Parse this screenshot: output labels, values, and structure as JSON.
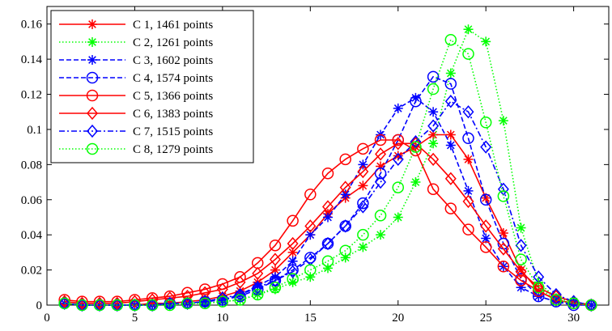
{
  "chart_data": {
    "type": "line",
    "xlim": [
      0,
      32
    ],
    "ylim": [
      0,
      0.17
    ],
    "xticks": [
      "0",
      "5",
      "10",
      "15",
      "20",
      "25",
      "30"
    ],
    "yticks": [
      "0",
      "0.02",
      "0.04",
      "0.06",
      "0.08",
      "0.1",
      "0.12",
      "0.14",
      "0.16"
    ],
    "legend_position": "top-left",
    "grid": false,
    "x": [
      1,
      2,
      3,
      4,
      5,
      6,
      7,
      8,
      9,
      10,
      11,
      12,
      13,
      14,
      15,
      16,
      17,
      18,
      19,
      20,
      21,
      22,
      23,
      24,
      25,
      26,
      27,
      28,
      29,
      30,
      31
    ],
    "series": [
      {
        "name": "C 1, 1461 points",
        "color": "#ff0000",
        "dash": "solid",
        "marker": "star",
        "values": [
          0.001,
          0,
          0,
          0,
          0,
          0.001,
          0.001,
          0.002,
          0.003,
          0.005,
          0.008,
          0.013,
          0.02,
          0.03,
          0.04,
          0.052,
          0.061,
          0.068,
          0.079,
          0.085,
          0.09,
          0.097,
          0.097,
          0.083,
          0.061,
          0.041,
          0.02,
          0.008,
          0.003,
          0.001,
          0
        ]
      },
      {
        "name": "C 2, 1261 points",
        "color": "#00ff00",
        "dash": "dotted",
        "marker": "star",
        "values": [
          0.001,
          0,
          0,
          0,
          0,
          0,
          0,
          0.001,
          0.001,
          0.002,
          0.003,
          0.006,
          0.009,
          0.013,
          0.016,
          0.021,
          0.027,
          0.033,
          0.04,
          0.05,
          0.07,
          0.092,
          0.132,
          0.157,
          0.15,
          0.105,
          0.044,
          0.013,
          0.004,
          0.002,
          0
        ]
      },
      {
        "name": "C 3, 1602 points",
        "color": "#0000ff",
        "dash": "dashed",
        "marker": "star",
        "values": [
          0.001,
          0,
          0,
          0,
          0,
          0,
          0.001,
          0.001,
          0.002,
          0.003,
          0.006,
          0.011,
          0.016,
          0.025,
          0.04,
          0.05,
          0.063,
          0.08,
          0.097,
          0.112,
          0.118,
          0.11,
          0.091,
          0.065,
          0.038,
          0.022,
          0.01,
          0.005,
          0.002,
          0.001,
          0
        ]
      },
      {
        "name": "C 4, 1574 points",
        "color": "#0000ff",
        "dash": "dashed",
        "marker": "circle",
        "values": [
          0.001,
          0,
          0,
          0,
          0,
          0,
          0.001,
          0.001,
          0.002,
          0.003,
          0.005,
          0.009,
          0.014,
          0.02,
          0.027,
          0.035,
          0.045,
          0.058,
          0.075,
          0.094,
          0.116,
          0.13,
          0.126,
          0.095,
          0.06,
          0.035,
          0.015,
          0.005,
          0.002,
          0,
          0
        ]
      },
      {
        "name": "C 5, 1366 points",
        "color": "#ff0000",
        "dash": "solid",
        "marker": "circle",
        "values": [
          0.003,
          0.002,
          0.002,
          0.002,
          0.003,
          0.004,
          0.005,
          0.007,
          0.009,
          0.012,
          0.016,
          0.024,
          0.034,
          0.048,
          0.063,
          0.075,
          0.083,
          0.089,
          0.094,
          0.094,
          0.088,
          0.066,
          0.055,
          0.043,
          0.033,
          0.022,
          0.014,
          0.008,
          0.003,
          0.001,
          0
        ]
      },
      {
        "name": "C 6, 1383 points",
        "color": "#ff0000",
        "dash": "solid",
        "marker": "diamond",
        "values": [
          0.002,
          0.001,
          0.001,
          0.001,
          0.002,
          0.003,
          0.004,
          0.005,
          0.007,
          0.009,
          0.013,
          0.018,
          0.026,
          0.035,
          0.045,
          0.056,
          0.067,
          0.076,
          0.086,
          0.092,
          0.092,
          0.083,
          0.072,
          0.059,
          0.045,
          0.032,
          0.019,
          0.01,
          0.005,
          0.002,
          0
        ]
      },
      {
        "name": "C 7, 1515 points",
        "color": "#0000ff",
        "dash": "dashdot",
        "marker": "diamond",
        "values": [
          0.001,
          0,
          0,
          0,
          0,
          0,
          0.001,
          0.001,
          0.002,
          0.004,
          0.006,
          0.01,
          0.014,
          0.019,
          0.026,
          0.035,
          0.045,
          0.056,
          0.07,
          0.083,
          0.093,
          0.102,
          0.116,
          0.11,
          0.09,
          0.066,
          0.034,
          0.016,
          0.006,
          0.002,
          0
        ]
      },
      {
        "name": "C 8, 1279 points",
        "color": "#00ff00",
        "dash": "dotted",
        "marker": "circle",
        "values": [
          0.001,
          0,
          0,
          0,
          0,
          0,
          0,
          0.001,
          0.001,
          0.002,
          0.003,
          0.006,
          0.01,
          0.015,
          0.02,
          0.025,
          0.031,
          0.04,
          0.051,
          0.067,
          0.09,
          0.123,
          0.151,
          0.143,
          0.104,
          0.062,
          0.026,
          0.01,
          0.003,
          0.001,
          0
        ]
      }
    ]
  }
}
